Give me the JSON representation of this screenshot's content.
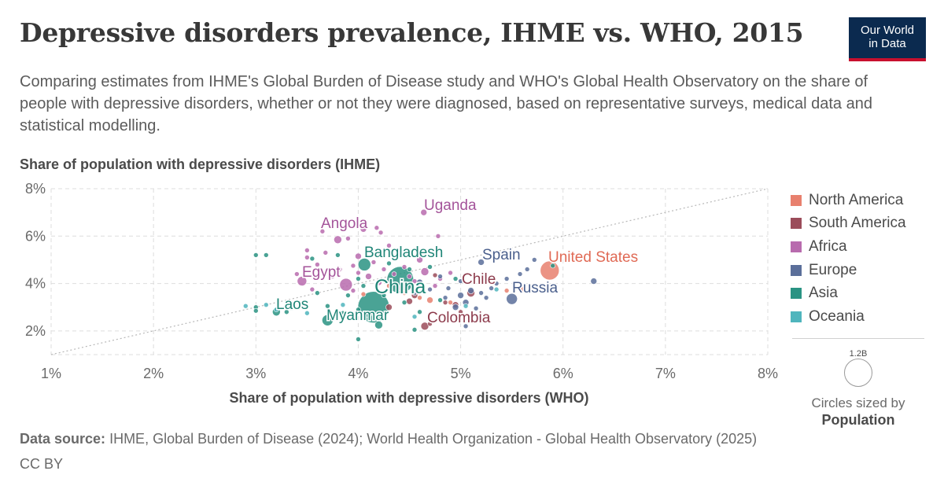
{
  "header": {
    "title": "Depressive disorders prevalence, IHME vs. WHO, 2015",
    "subtitle": "Comparing estimates from IHME's Global Burden of Disease study and WHO's Global Health Observatory on the share of people with depressive disorders, whether or not they were diagnosed, based on representative surveys, medical data and statistical modelling.",
    "logo_line1": "Our World",
    "logo_line2": "in Data"
  },
  "footer": {
    "source_label": "Data source:",
    "source_text": "IHME, Global Burden of Disease (2024); World Health Organization - Global Health Observatory (2025)",
    "license": "CC BY"
  },
  "size_legend": {
    "value": "1.2B",
    "caption": "Circles sized by",
    "variable": "Population"
  },
  "chart_data": {
    "type": "scatter",
    "xlabel": "Share of population with depressive disorders (WHO)",
    "ylabel": "Share of population with depressive disorders (IHME)",
    "xlim": [
      1,
      8
    ],
    "ylim": [
      1,
      8
    ],
    "x_ticks": [
      "1%",
      "2%",
      "3%",
      "4%",
      "5%",
      "6%",
      "7%",
      "8%"
    ],
    "y_ticks": [
      "2%",
      "4%",
      "6%",
      "8%"
    ],
    "grid": true,
    "legend_position": "right",
    "reference_line": "y = x",
    "groups": [
      {
        "name": "North America",
        "color": "#e8806e"
      },
      {
        "name": "South America",
        "color": "#9b4c5a"
      },
      {
        "name": "Africa",
        "color": "#b86bae"
      },
      {
        "name": "Europe",
        "color": "#5b6f9a"
      },
      {
        "name": "Asia",
        "color": "#2a9383"
      },
      {
        "name": "Oceania",
        "color": "#4fb5bd"
      }
    ],
    "labels": [
      {
        "text": "Uganda",
        "group": "Africa",
        "x": 4.64,
        "y": 7.0
      },
      {
        "text": "Angola",
        "group": "Africa",
        "x": 4.05,
        "y": 6.3
      },
      {
        "text": "Bangladesh",
        "group": "Asia",
        "x": 4.06,
        "y": 4.8
      },
      {
        "text": "Spain",
        "group": "Europe",
        "x": 5.2,
        "y": 4.9
      },
      {
        "text": "United States",
        "group": "North America",
        "x": 5.87,
        "y": 4.55
      },
      {
        "text": "Egypt",
        "group": "Africa",
        "x": 3.88,
        "y": 3.95
      },
      {
        "text": "China",
        "group": "Asia",
        "x": 4.41,
        "y": 4.15
      },
      {
        "text": "Chile",
        "group": "South America",
        "x": 5.05,
        "y": 3.75
      },
      {
        "text": "Russia",
        "group": "Europe",
        "x": 5.5,
        "y": 3.35
      },
      {
        "text": "Laos",
        "group": "Asia",
        "x": 3.2,
        "y": 2.8
      },
      {
        "text": "Myanmar",
        "group": "Asia",
        "x": 3.7,
        "y": 2.45
      },
      {
        "text": "Colombia",
        "group": "South America",
        "x": 4.62,
        "y": 2.2
      }
    ],
    "points": [
      {
        "g": 1,
        "x": 5.87,
        "y": 4.55,
        "s": 12
      },
      {
        "g": 1,
        "x": 5.6,
        "y": 3.75,
        "s": 5
      },
      {
        "g": 1,
        "x": 4.3,
        "y": 3.9,
        "s": 3
      },
      {
        "g": 1,
        "x": 4.7,
        "y": 3.3,
        "s": 4
      },
      {
        "g": 1,
        "x": 4.05,
        "y": 3.55,
        "s": 3
      },
      {
        "g": 1,
        "x": 5.45,
        "y": 3.7,
        "s": 3
      },
      {
        "g": 1,
        "x": 4.6,
        "y": 3.4,
        "s": 3
      },
      {
        "g": 1,
        "x": 4.9,
        "y": 3.2,
        "s": 3
      },
      {
        "g": 1,
        "x": 4.45,
        "y": 3.6,
        "s": 3
      },
      {
        "g": 2,
        "x": 5.1,
        "y": 3.6,
        "s": 5
      },
      {
        "g": 2,
        "x": 4.95,
        "y": 3.1,
        "s": 4
      },
      {
        "g": 2,
        "x": 4.65,
        "y": 2.2,
        "s": 5
      },
      {
        "g": 2,
        "x": 4.5,
        "y": 3.25,
        "s": 4
      },
      {
        "g": 2,
        "x": 4.75,
        "y": 4.35,
        "s": 3
      },
      {
        "g": 2,
        "x": 4.3,
        "y": 3.0,
        "s": 4
      },
      {
        "g": 2,
        "x": 4.85,
        "y": 3.2,
        "s": 3
      },
      {
        "g": 2,
        "x": 5.0,
        "y": 2.8,
        "s": 3
      },
      {
        "g": 2,
        "x": 4.55,
        "y": 3.5,
        "s": 4
      },
      {
        "g": 2,
        "x": 4.7,
        "y": 2.3,
        "s": 3
      },
      {
        "g": 3,
        "x": 4.64,
        "y": 7.0,
        "s": 4
      },
      {
        "g": 3,
        "x": 4.05,
        "y": 6.3,
        "s": 4
      },
      {
        "g": 3,
        "x": 3.65,
        "y": 6.2,
        "s": 3
      },
      {
        "g": 3,
        "x": 4.18,
        "y": 6.35,
        "s": 3
      },
      {
        "g": 3,
        "x": 3.8,
        "y": 5.85,
        "s": 5
      },
      {
        "g": 3,
        "x": 4.22,
        "y": 6.15,
        "s": 3
      },
      {
        "g": 3,
        "x": 3.9,
        "y": 5.9,
        "s": 3
      },
      {
        "g": 3,
        "x": 4.78,
        "y": 6.0,
        "s": 3
      },
      {
        "g": 3,
        "x": 3.5,
        "y": 5.4,
        "s": 3
      },
      {
        "g": 3,
        "x": 4.3,
        "y": 5.6,
        "s": 3
      },
      {
        "g": 3,
        "x": 3.68,
        "y": 5.3,
        "s": 3
      },
      {
        "g": 3,
        "x": 4.0,
        "y": 5.15,
        "s": 4
      },
      {
        "g": 3,
        "x": 3.5,
        "y": 5.1,
        "s": 3
      },
      {
        "g": 3,
        "x": 4.6,
        "y": 5.0,
        "s": 4
      },
      {
        "g": 3,
        "x": 3.88,
        "y": 3.95,
        "s": 8
      },
      {
        "g": 3,
        "x": 3.45,
        "y": 4.1,
        "s": 6
      },
      {
        "g": 3,
        "x": 3.6,
        "y": 4.8,
        "s": 3
      },
      {
        "g": 3,
        "x": 3.82,
        "y": 4.6,
        "s": 3
      },
      {
        "g": 3,
        "x": 4.1,
        "y": 4.3,
        "s": 4
      },
      {
        "g": 3,
        "x": 4.25,
        "y": 4.6,
        "s": 3
      },
      {
        "g": 3,
        "x": 4.35,
        "y": 4.4,
        "s": 3
      },
      {
        "g": 3,
        "x": 4.5,
        "y": 4.3,
        "s": 3
      },
      {
        "g": 3,
        "x": 4.65,
        "y": 4.5,
        "s": 5
      },
      {
        "g": 3,
        "x": 3.75,
        "y": 4.3,
        "s": 3
      },
      {
        "g": 3,
        "x": 3.95,
        "y": 4.75,
        "s": 3
      },
      {
        "g": 3,
        "x": 4.15,
        "y": 4.9,
        "s": 3
      },
      {
        "g": 3,
        "x": 4.45,
        "y": 4.7,
        "s": 3
      },
      {
        "g": 3,
        "x": 4.8,
        "y": 4.2,
        "s": 3
      },
      {
        "g": 3,
        "x": 3.4,
        "y": 4.4,
        "s": 3
      },
      {
        "g": 3,
        "x": 4.55,
        "y": 4.1,
        "s": 3
      },
      {
        "g": 3,
        "x": 3.55,
        "y": 3.75,
        "s": 3
      },
      {
        "g": 3,
        "x": 4.2,
        "y": 4.05,
        "s": 4
      },
      {
        "g": 3,
        "x": 3.95,
        "y": 3.7,
        "s": 3
      },
      {
        "g": 3,
        "x": 4.4,
        "y": 3.8,
        "s": 3
      },
      {
        "g": 3,
        "x": 4.75,
        "y": 3.9,
        "s": 3
      },
      {
        "g": 3,
        "x": 4.0,
        "y": 4.45,
        "s": 3
      },
      {
        "g": 3,
        "x": 4.9,
        "y": 4.45,
        "s": 3
      },
      {
        "g": 4,
        "x": 5.2,
        "y": 4.9,
        "s": 4
      },
      {
        "g": 4,
        "x": 5.5,
        "y": 3.35,
        "s": 7
      },
      {
        "g": 4,
        "x": 6.3,
        "y": 4.1,
        "s": 4
      },
      {
        "g": 4,
        "x": 5.72,
        "y": 5.0,
        "s": 3
      },
      {
        "g": 4,
        "x": 5.65,
        "y": 4.6,
        "s": 3
      },
      {
        "g": 4,
        "x": 5.58,
        "y": 4.4,
        "s": 3
      },
      {
        "g": 4,
        "x": 5.45,
        "y": 4.2,
        "s": 3
      },
      {
        "g": 4,
        "x": 5.3,
        "y": 3.8,
        "s": 3
      },
      {
        "g": 4,
        "x": 5.25,
        "y": 3.4,
        "s": 3
      },
      {
        "g": 4,
        "x": 5.1,
        "y": 3.7,
        "s": 4
      },
      {
        "g": 4,
        "x": 5.0,
        "y": 3.5,
        "s": 4
      },
      {
        "g": 4,
        "x": 4.95,
        "y": 3.0,
        "s": 4
      },
      {
        "g": 4,
        "x": 5.05,
        "y": 3.2,
        "s": 4
      },
      {
        "g": 4,
        "x": 5.15,
        "y": 2.95,
        "s": 3
      },
      {
        "g": 4,
        "x": 4.88,
        "y": 3.8,
        "s": 3
      },
      {
        "g": 4,
        "x": 4.8,
        "y": 4.3,
        "s": 3
      },
      {
        "g": 4,
        "x": 4.6,
        "y": 4.05,
        "s": 4
      },
      {
        "g": 4,
        "x": 4.55,
        "y": 3.6,
        "s": 3
      },
      {
        "g": 4,
        "x": 5.35,
        "y": 4.0,
        "s": 3
      },
      {
        "g": 4,
        "x": 5.0,
        "y": 4.1,
        "s": 3
      },
      {
        "g": 4,
        "x": 5.2,
        "y": 3.6,
        "s": 3
      },
      {
        "g": 4,
        "x": 4.7,
        "y": 3.75,
        "s": 3
      },
      {
        "g": 4,
        "x": 5.05,
        "y": 2.2,
        "s": 3
      },
      {
        "g": 4,
        "x": 4.85,
        "y": 3.4,
        "s": 3
      },
      {
        "g": 5,
        "x": 4.41,
        "y": 4.15,
        "s": 17
      },
      {
        "g": 5,
        "x": 4.15,
        "y": 3.0,
        "s": 20
      },
      {
        "g": 5,
        "x": 4.06,
        "y": 4.8,
        "s": 8
      },
      {
        "g": 5,
        "x": 3.7,
        "y": 2.45,
        "s": 7
      },
      {
        "g": 5,
        "x": 4.2,
        "y": 2.25,
        "s": 5
      },
      {
        "g": 5,
        "x": 3.2,
        "y": 2.8,
        "s": 5
      },
      {
        "g": 5,
        "x": 3.35,
        "y": 3.0,
        "s": 4
      },
      {
        "g": 5,
        "x": 3.0,
        "y": 3.0,
        "s": 3
      },
      {
        "g": 5,
        "x": 3.0,
        "y": 2.85,
        "s": 3
      },
      {
        "g": 5,
        "x": 3.0,
        "y": 5.2,
        "s": 3
      },
      {
        "g": 5,
        "x": 3.1,
        "y": 5.2,
        "s": 3
      },
      {
        "g": 5,
        "x": 3.8,
        "y": 5.2,
        "s": 3
      },
      {
        "g": 5,
        "x": 4.0,
        "y": 1.65,
        "s": 3
      },
      {
        "g": 5,
        "x": 4.55,
        "y": 2.05,
        "s": 3
      },
      {
        "g": 5,
        "x": 3.6,
        "y": 3.6,
        "s": 3
      },
      {
        "g": 5,
        "x": 3.7,
        "y": 3.05,
        "s": 3
      },
      {
        "g": 5,
        "x": 4.0,
        "y": 2.9,
        "s": 3
      },
      {
        "g": 5,
        "x": 3.9,
        "y": 3.5,
        "s": 3
      },
      {
        "g": 5,
        "x": 4.0,
        "y": 4.2,
        "s": 3
      },
      {
        "g": 5,
        "x": 4.3,
        "y": 4.85,
        "s": 3
      },
      {
        "g": 5,
        "x": 4.5,
        "y": 4.6,
        "s": 3
      },
      {
        "g": 5,
        "x": 4.7,
        "y": 4.7,
        "s": 3
      },
      {
        "g": 5,
        "x": 4.6,
        "y": 2.8,
        "s": 3
      },
      {
        "g": 5,
        "x": 4.1,
        "y": 2.7,
        "s": 4
      },
      {
        "g": 5,
        "x": 4.95,
        "y": 4.2,
        "s": 3
      },
      {
        "g": 5,
        "x": 3.85,
        "y": 2.75,
        "s": 3
      },
      {
        "g": 5,
        "x": 4.25,
        "y": 3.5,
        "s": 3
      },
      {
        "g": 5,
        "x": 3.55,
        "y": 5.05,
        "s": 3
      },
      {
        "g": 5,
        "x": 4.05,
        "y": 3.9,
        "s": 3
      },
      {
        "g": 5,
        "x": 4.45,
        "y": 3.2,
        "s": 3
      },
      {
        "g": 5,
        "x": 3.3,
        "y": 2.8,
        "s": 3
      },
      {
        "g": 5,
        "x": 4.8,
        "y": 3.3,
        "s": 3
      },
      {
        "g": 5,
        "x": 5.9,
        "y": 4.75,
        "s": 3
      },
      {
        "g": 6,
        "x": 2.9,
        "y": 3.05,
        "s": 3
      },
      {
        "g": 6,
        "x": 3.2,
        "y": 2.9,
        "s": 3
      },
      {
        "g": 6,
        "x": 3.1,
        "y": 3.1,
        "s": 3
      },
      {
        "g": 6,
        "x": 3.3,
        "y": 3.1,
        "s": 3
      },
      {
        "g": 6,
        "x": 3.5,
        "y": 2.75,
        "s": 3
      },
      {
        "g": 6,
        "x": 4.55,
        "y": 2.6,
        "s": 3
      },
      {
        "g": 6,
        "x": 5.35,
        "y": 3.75,
        "s": 3
      },
      {
        "g": 6,
        "x": 5.05,
        "y": 3.05,
        "s": 3
      },
      {
        "g": 6,
        "x": 3.85,
        "y": 3.1,
        "s": 3
      }
    ]
  }
}
